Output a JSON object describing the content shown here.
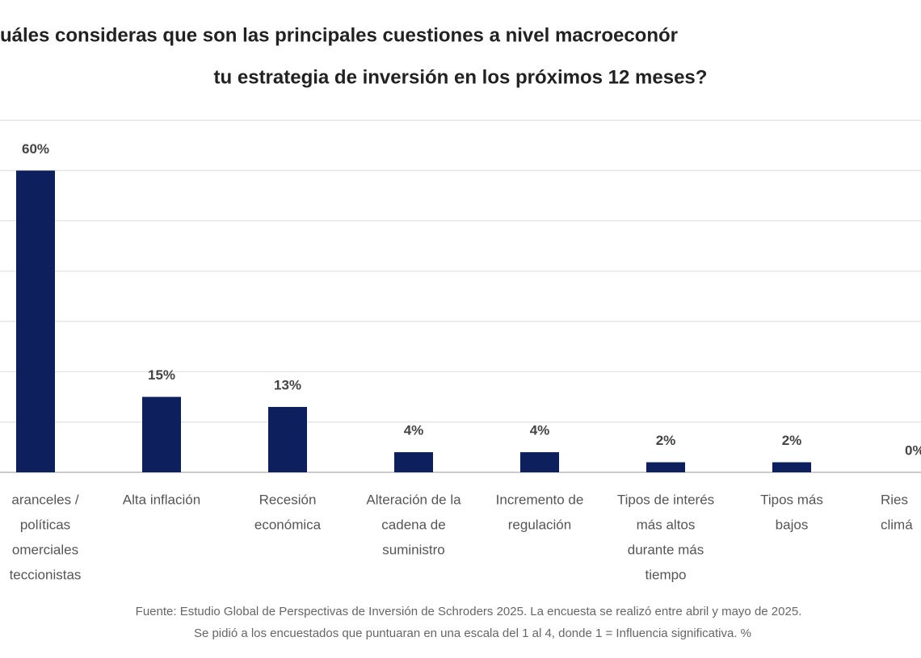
{
  "chart_data": {
    "type": "bar",
    "title": [
      "uáles consideras que son las principales cuestiones a nivel macroeconór",
      "tu estrategia de inversión en los próximos 12 meses?"
    ],
    "categories": [
      [
        "aranceles /",
        "políticas",
        "omerciales",
        "teccionistas"
      ],
      [
        "Alta inflación"
      ],
      [
        "Recesión",
        "económica"
      ],
      [
        "Alteración de la",
        "cadena de",
        "suministro"
      ],
      [
        "Incremento de",
        "regulación"
      ],
      [
        "Tipos de interés",
        "más altos",
        "durante más",
        "tiempo"
      ],
      [
        "Tipos más",
        "bajos"
      ],
      [
        "Ries",
        "climá"
      ]
    ],
    "values": [
      60,
      15,
      13,
      4,
      4,
      2,
      2,
      0
    ],
    "value_labels": [
      "60%",
      "15%",
      "13%",
      "4%",
      "4%",
      "2%",
      "2%",
      "0%"
    ],
    "color": "#0d1f5c",
    "ylim": [
      0,
      70
    ],
    "yticks": [
      0,
      10,
      20,
      30,
      40,
      50,
      60,
      70
    ],
    "grid": true,
    "footnote": [
      "Fuente: Estudio Global de Perspectivas de Inversión de Schroders 2025. La encuesta se realizó entre abril y mayo de 2025.",
      "Se pidió a los encuestados que puntuaran en una escala del 1 al 4, donde 1 = Influencia significativa. %"
    ]
  }
}
